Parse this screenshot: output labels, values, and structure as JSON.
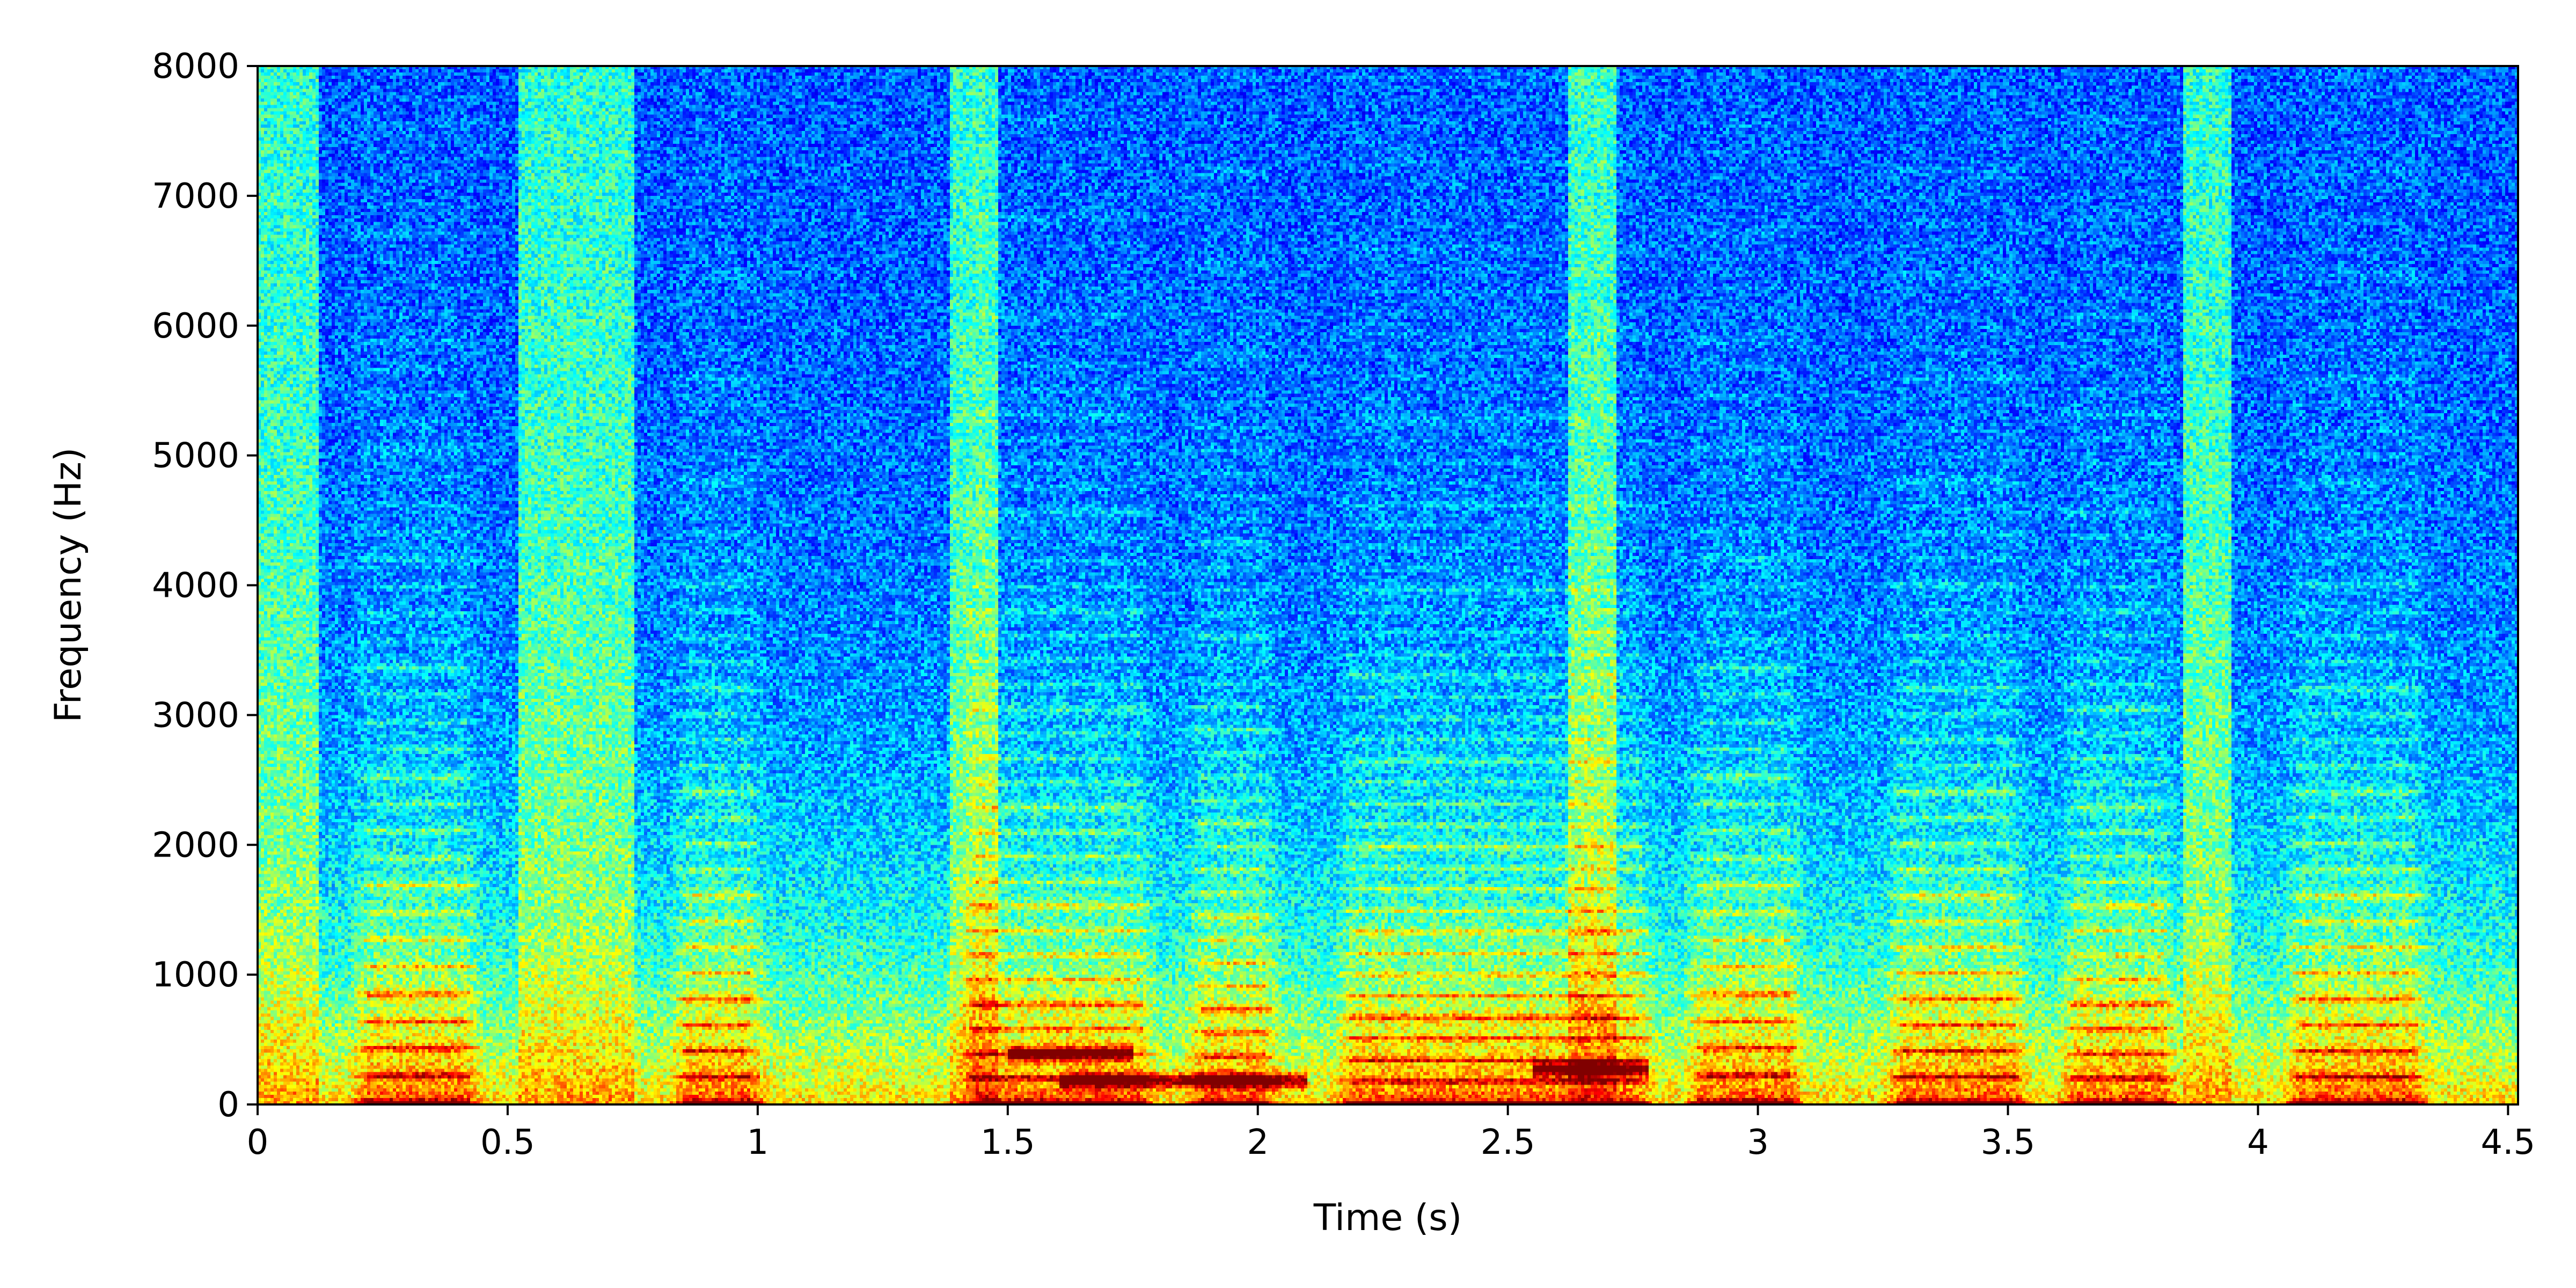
{
  "chart_data": {
    "type": "heatmap",
    "title": "",
    "xlabel": "Time (s)",
    "ylabel": "Frequency (Hz)",
    "xlim": [
      0,
      4.52
    ],
    "ylim": [
      0,
      8000
    ],
    "x_ticks": [
      0,
      0.5,
      1,
      1.5,
      2,
      2.5,
      3,
      3.5,
      4,
      4.5
    ],
    "x_tick_labels": [
      "0",
      "0.5",
      "1",
      "1.5",
      "2",
      "2.5",
      "3",
      "3.5",
      "4",
      "4.5"
    ],
    "y_ticks": [
      0,
      1000,
      2000,
      3000,
      4000,
      5000,
      6000,
      7000,
      8000
    ],
    "y_tick_labels": [
      "0",
      "1000",
      "2000",
      "3000",
      "4000",
      "5000",
      "6000",
      "7000",
      "8000"
    ],
    "colormap": "jet",
    "grid": false,
    "legend": "none",
    "voiced_segments": [
      {
        "t": [
          0.18,
          0.45
        ],
        "f0": 210
      },
      {
        "t": [
          0.82,
          1.02
        ],
        "f0": 200
      },
      {
        "t": [
          1.4,
          1.8
        ],
        "f0": 190
      },
      {
        "t": [
          1.85,
          2.05
        ],
        "f0": 180
      },
      {
        "t": [
          2.15,
          2.8
        ],
        "f0": 165
      },
      {
        "t": [
          2.85,
          3.1
        ],
        "f0": 210
      },
      {
        "t": [
          3.25,
          3.55
        ],
        "f0": 200
      },
      {
        "t": [
          3.6,
          3.85
        ],
        "f0": 190
      },
      {
        "t": [
          4.05,
          4.35
        ],
        "f0": 200
      }
    ],
    "fricative_segments": [
      {
        "t": [
          0.0,
          0.12
        ]
      },
      {
        "t": [
          0.52,
          0.75
        ]
      },
      {
        "t": [
          1.38,
          1.48
        ]
      },
      {
        "t": [
          2.62,
          2.72
        ]
      },
      {
        "t": [
          3.85,
          3.95
        ]
      }
    ],
    "strong_energy": [
      {
        "t": [
          1.5,
          1.75
        ],
        "f": 380
      },
      {
        "t": [
          2.55,
          2.78
        ],
        "f": 260
      },
      {
        "t": [
          1.6,
          2.1
        ],
        "f": 170
      }
    ]
  }
}
